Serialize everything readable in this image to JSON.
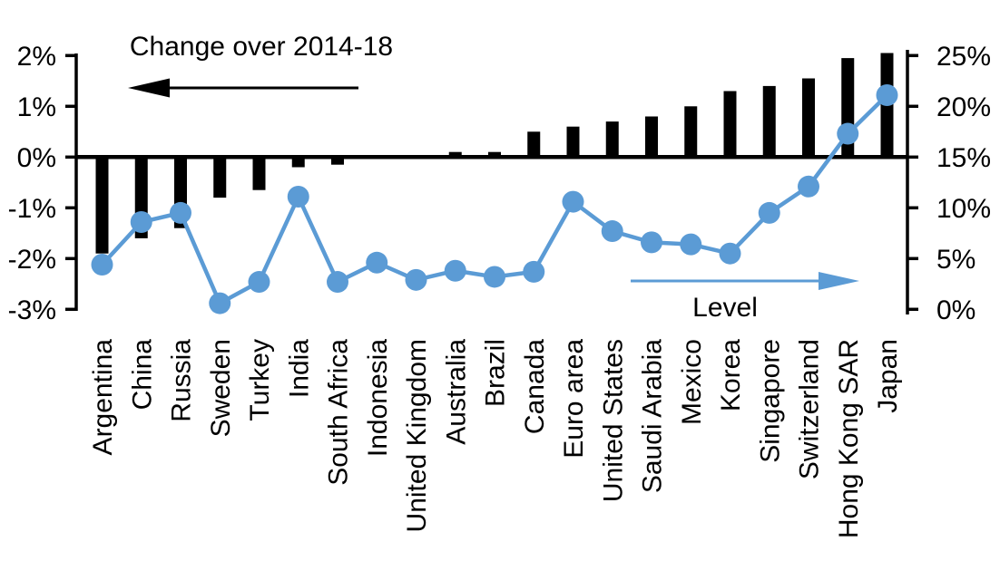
{
  "page": {
    "background": "#FFFFFF"
  },
  "chart_data": {
    "type": "bar",
    "subtype": "combo-bar-line-dual-axis",
    "title": "",
    "categories": [
      "Argentina",
      "China",
      "Russia",
      "Sweden",
      "Turkey",
      "India",
      "South Africa",
      "Indonesia",
      "United Kingdom",
      "Australia",
      "Brazil",
      "Canada",
      "Euro area",
      "United States",
      "Saudi Arabia",
      "Mexico",
      "Korea",
      "Singapore",
      "Switzerland",
      "Hong Kong SAR",
      "Japan"
    ],
    "series": [
      {
        "name": "Change over 2014-18",
        "chart": "bar",
        "axis": "left",
        "unit": "%",
        "color": "#000000",
        "values": [
          -1.9,
          -1.6,
          -1.4,
          -0.8,
          -0.65,
          -0.2,
          -0.15,
          0,
          0,
          0.1,
          0.1,
          0.5,
          0.6,
          0.7,
          0.8,
          1.0,
          1.3,
          1.4,
          1.55,
          1.95,
          2.05
        ]
      },
      {
        "name": "Level",
        "chart": "line",
        "axis": "right",
        "unit": "%",
        "color": "#5B9BD5",
        "values": [
          4.4,
          8.6,
          9.5,
          0.6,
          2.7,
          11.1,
          2.7,
          4.6,
          2.9,
          3.8,
          3.2,
          3.7,
          10.6,
          7.7,
          6.6,
          6.4,
          5.5,
          9.5,
          12.1,
          17.3,
          21.1
        ]
      }
    ],
    "left_axis": {
      "min": -3,
      "max": 2,
      "tick_values": [
        2,
        1,
        0,
        -1,
        -2,
        -3
      ],
      "tick_labels": [
        "2%",
        "1%",
        "0%",
        "-1%",
        "-2%",
        "-3%"
      ]
    },
    "right_axis": {
      "min": 0,
      "max": 25,
      "tick_values": [
        25,
        20,
        15,
        10,
        5,
        0
      ],
      "tick_labels": [
        "25%",
        "20%",
        "15%",
        "10%",
        "5%",
        "0%"
      ]
    },
    "annotations": [
      {
        "text": "Change over 2014-18",
        "arrow": "left",
        "arrow_color": "#000000"
      },
      {
        "text": "Level",
        "arrow": "right",
        "arrow_color": "#5B9BD5"
      }
    ],
    "grid": false,
    "legend_position": "none"
  }
}
